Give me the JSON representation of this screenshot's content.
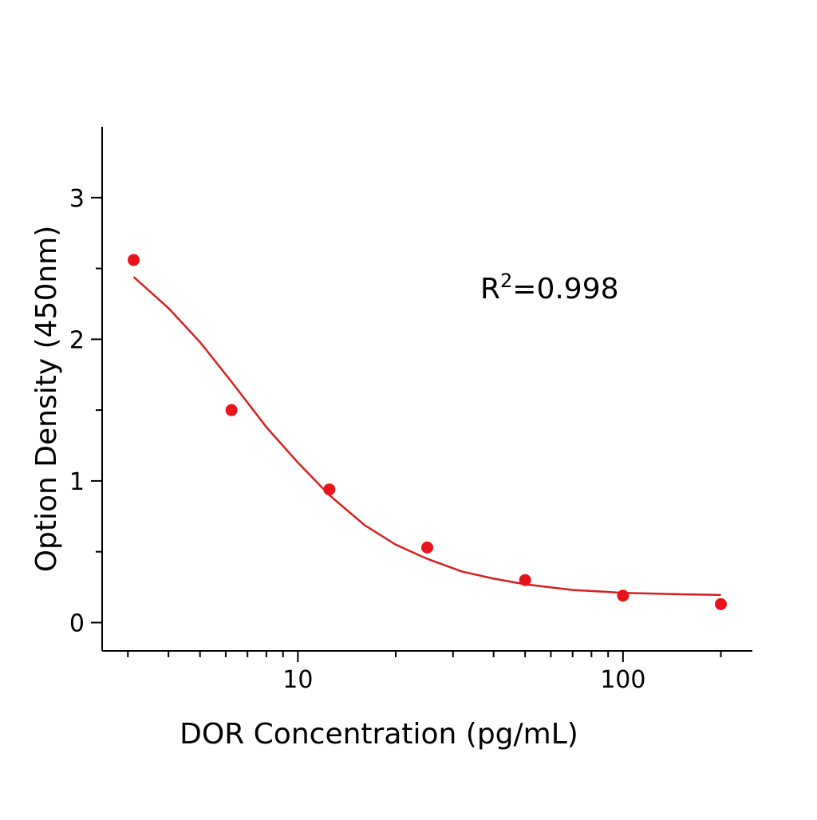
{
  "chart_data": {
    "type": "scatter",
    "x_label": "DOR Concentration (pg/mL)",
    "y_label": "Option Density (450nm)",
    "annotation": {
      "base": "R",
      "sup": "2",
      "rest": "=0.998"
    },
    "xscale": "log",
    "xlim": [
      2.5,
      250
    ],
    "xticks": [
      10,
      100
    ],
    "xminor_ticks": [
      3,
      4,
      5,
      6,
      7,
      8,
      9,
      20,
      30,
      40,
      50,
      60,
      70,
      80,
      90,
      200
    ],
    "ylim": [
      -0.2,
      3.5
    ],
    "yticks": [
      0,
      1,
      2,
      3
    ],
    "yminor_ticks": [
      0.5,
      1.5,
      2.5
    ],
    "points": {
      "color": "#e8141c",
      "x": [
        3.125,
        6.25,
        12.5,
        25,
        50,
        100,
        200
      ],
      "values": [
        2.56,
        1.5,
        0.94,
        0.53,
        0.3,
        0.19,
        0.13
      ]
    },
    "fit": {
      "color": "#d81e1e",
      "x": [
        3.125,
        4,
        5,
        6.25,
        8,
        10,
        12.5,
        16,
        20,
        25,
        32,
        40,
        50,
        70,
        100,
        150,
        200
      ],
      "values": [
        2.44,
        2.22,
        1.98,
        1.7,
        1.38,
        1.13,
        0.9,
        0.69,
        0.55,
        0.45,
        0.36,
        0.31,
        0.27,
        0.23,
        0.21,
        0.2,
        0.195
      ]
    }
  }
}
